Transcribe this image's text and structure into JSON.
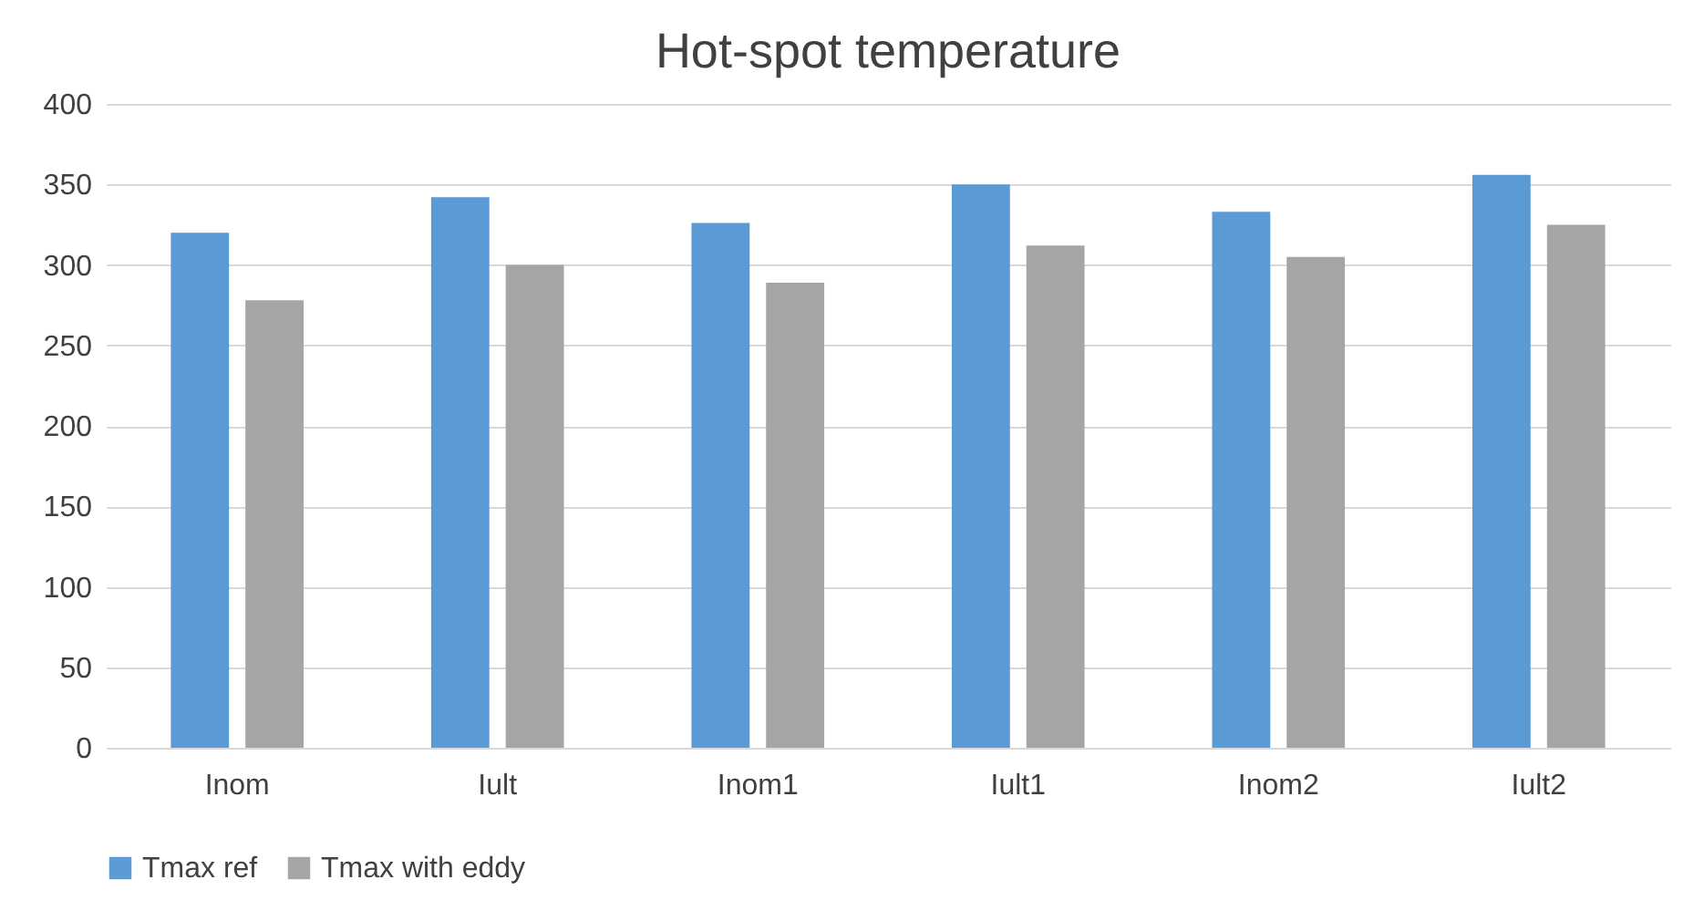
{
  "chart_data": {
    "type": "bar",
    "title": "Hot-spot temperature",
    "categories": [
      "Inom",
      "Iult",
      "Inom1",
      "Iult1",
      "Inom2",
      "Iult2"
    ],
    "series": [
      {
        "name": "Tmax ref",
        "color": "#5b9bd5",
        "values": [
          320,
          342,
          326,
          350,
          333,
          356
        ]
      },
      {
        "name": "Tmax with eddy",
        "color": "#a5a5a5",
        "values": [
          278,
          300,
          289,
          312,
          305,
          325
        ]
      }
    ],
    "ylim": [
      0,
      400
    ],
    "yticks": [
      0,
      50,
      100,
      150,
      200,
      250,
      300,
      350,
      400
    ],
    "grid": "y",
    "legend": "bottom"
  }
}
